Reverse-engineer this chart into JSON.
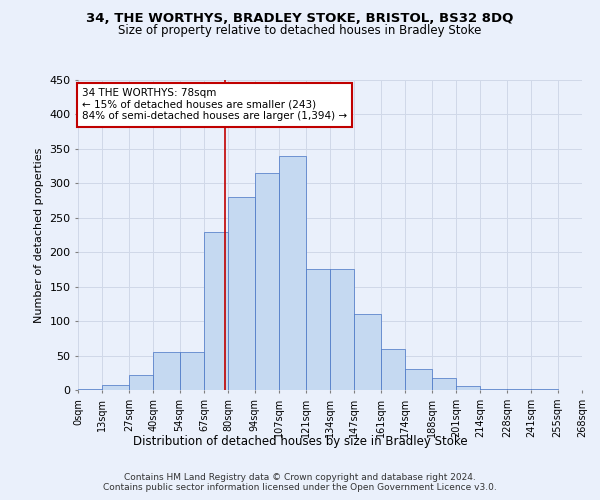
{
  "title1": "34, THE WORTHYS, BRADLEY STOKE, BRISTOL, BS32 8DQ",
  "title2": "Size of property relative to detached houses in Bradley Stoke",
  "xlabel": "Distribution of detached houses by size in Bradley Stoke",
  "ylabel": "Number of detached properties",
  "footer1": "Contains HM Land Registry data © Crown copyright and database right 2024.",
  "footer2": "Contains public sector information licensed under the Open Government Licence v3.0.",
  "annotation_title": "34 THE WORTHYS: 78sqm",
  "annotation_line1": "← 15% of detached houses are smaller (243)",
  "annotation_line2": "84% of semi-detached houses are larger (1,394) →",
  "property_value": 78,
  "bin_edges": [
    0,
    13,
    27,
    40,
    54,
    67,
    80,
    94,
    107,
    121,
    134,
    147,
    161,
    174,
    188,
    201,
    214,
    228,
    241,
    255,
    268
  ],
  "bar_heights": [
    2,
    7,
    22,
    55,
    55,
    230,
    280,
    315,
    340,
    175,
    175,
    110,
    60,
    30,
    18,
    6,
    2,
    2,
    1,
    0
  ],
  "bar_color": "#c5d9f1",
  "bar_edge_color": "#4472c4",
  "vline_color": "#c00000",
  "vline_x": 78,
  "annotation_box_color": "#ffffff",
  "annotation_box_edge": "#c00000",
  "grid_color": "#d0d8e8",
  "bg_color": "#eaf0fb",
  "ylim": [
    0,
    450
  ],
  "yticks": [
    0,
    50,
    100,
    150,
    200,
    250,
    300,
    350,
    400,
    450
  ]
}
